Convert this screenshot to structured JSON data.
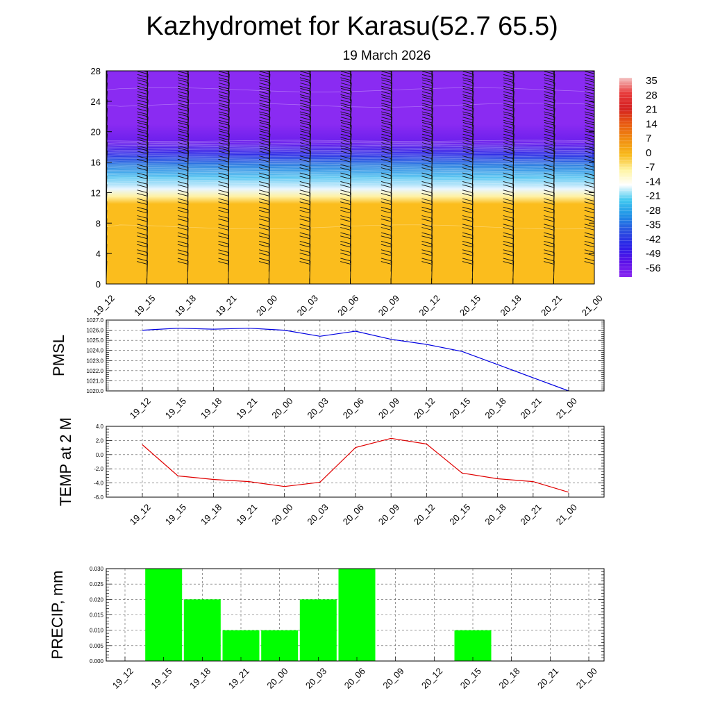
{
  "title": "Kazhydromet for Karasu(52.7 65.5)",
  "subtitle": "19 March 2026",
  "time_labels": [
    "19_12",
    "19_15",
    "19_18",
    "19_21",
    "20_00",
    "20_03",
    "20_06",
    "20_09",
    "20_12",
    "20_15",
    "20_18",
    "20_21",
    "21_00"
  ],
  "chart_data": [
    {
      "type": "heatmap",
      "name": "",
      "y_ticks": [
        "0",
        "4",
        "8",
        "12",
        "16",
        "20",
        "24",
        "28"
      ],
      "ylim": [
        0,
        28
      ],
      "colorbar_labels": [
        "35",
        "28",
        "21",
        "14",
        "7",
        "0",
        "-7",
        "-14",
        "-21",
        "-28",
        "-35",
        "-42",
        "-49",
        "-56"
      ],
      "colorbar_colors": [
        "#f4c4c4",
        "#e83a3a",
        "#d42020",
        "#e85a10",
        "#f08c10",
        "#f8b818",
        "#fff4a0",
        "#ffffff",
        "#40c8f0",
        "#1e90e6",
        "#2a50e0",
        "#2a20e8",
        "#5a10e8",
        "#8a28f0"
      ],
      "level_colors": [
        {
          "level": 0,
          "color": "#fbbd1d"
        },
        {
          "level": 10.5,
          "color": "#fbbd1d"
        },
        {
          "level": 11.5,
          "color": "#fff2a6"
        },
        {
          "level": 12.5,
          "color": "#e9f6ff"
        },
        {
          "level": 14,
          "color": "#58c6f2"
        },
        {
          "level": 15.6,
          "color": "#2b7fe0"
        },
        {
          "level": 17,
          "color": "#2f2fe6"
        },
        {
          "level": 18.5,
          "color": "#6a1fec"
        },
        {
          "level": 21,
          "color": "#8a2bf2"
        },
        {
          "level": 28,
          "color": "#8a2bf2"
        }
      ]
    },
    {
      "type": "line",
      "ylabel": "PMSL",
      "y_ticks": [
        "1020.0",
        "1021.0",
        "1022.0",
        "1023.0",
        "1024.0",
        "1025.0",
        "1026.0",
        "1027.0"
      ],
      "ylim": [
        1020,
        1027
      ],
      "color": "#0000e0",
      "values": [
        1026.0,
        1026.2,
        1026.1,
        1026.2,
        1026.0,
        1025.4,
        1025.9,
        1025.1,
        1024.6,
        1023.9,
        1022.6,
        1021.3,
        1020.0
      ]
    },
    {
      "type": "line",
      "ylabel": "TEMP at 2 M",
      "y_ticks": [
        "-6.0",
        "-4.0",
        "-2.0",
        "0.0",
        "2.0",
        "4.0"
      ],
      "ylim": [
        -6,
        4
      ],
      "color": "#e00000",
      "values": [
        1.4,
        -3.0,
        -3.5,
        -3.8,
        -4.5,
        -3.9,
        1.0,
        2.3,
        1.5,
        -2.6,
        -3.4,
        -3.8,
        -5.3
      ]
    },
    {
      "type": "bar",
      "ylabel": "PRECIP, mm",
      "y_ticks": [
        "0.000",
        "0.005",
        "0.010",
        "0.015",
        "0.020",
        "0.025",
        "0.030"
      ],
      "ylim": [
        0,
        0.03
      ],
      "color": "#00ff00",
      "values": [
        0,
        0.03,
        0.02,
        0.01,
        0.01,
        0.02,
        0.03,
        0,
        0,
        0.01,
        0,
        0,
        0
      ]
    }
  ]
}
